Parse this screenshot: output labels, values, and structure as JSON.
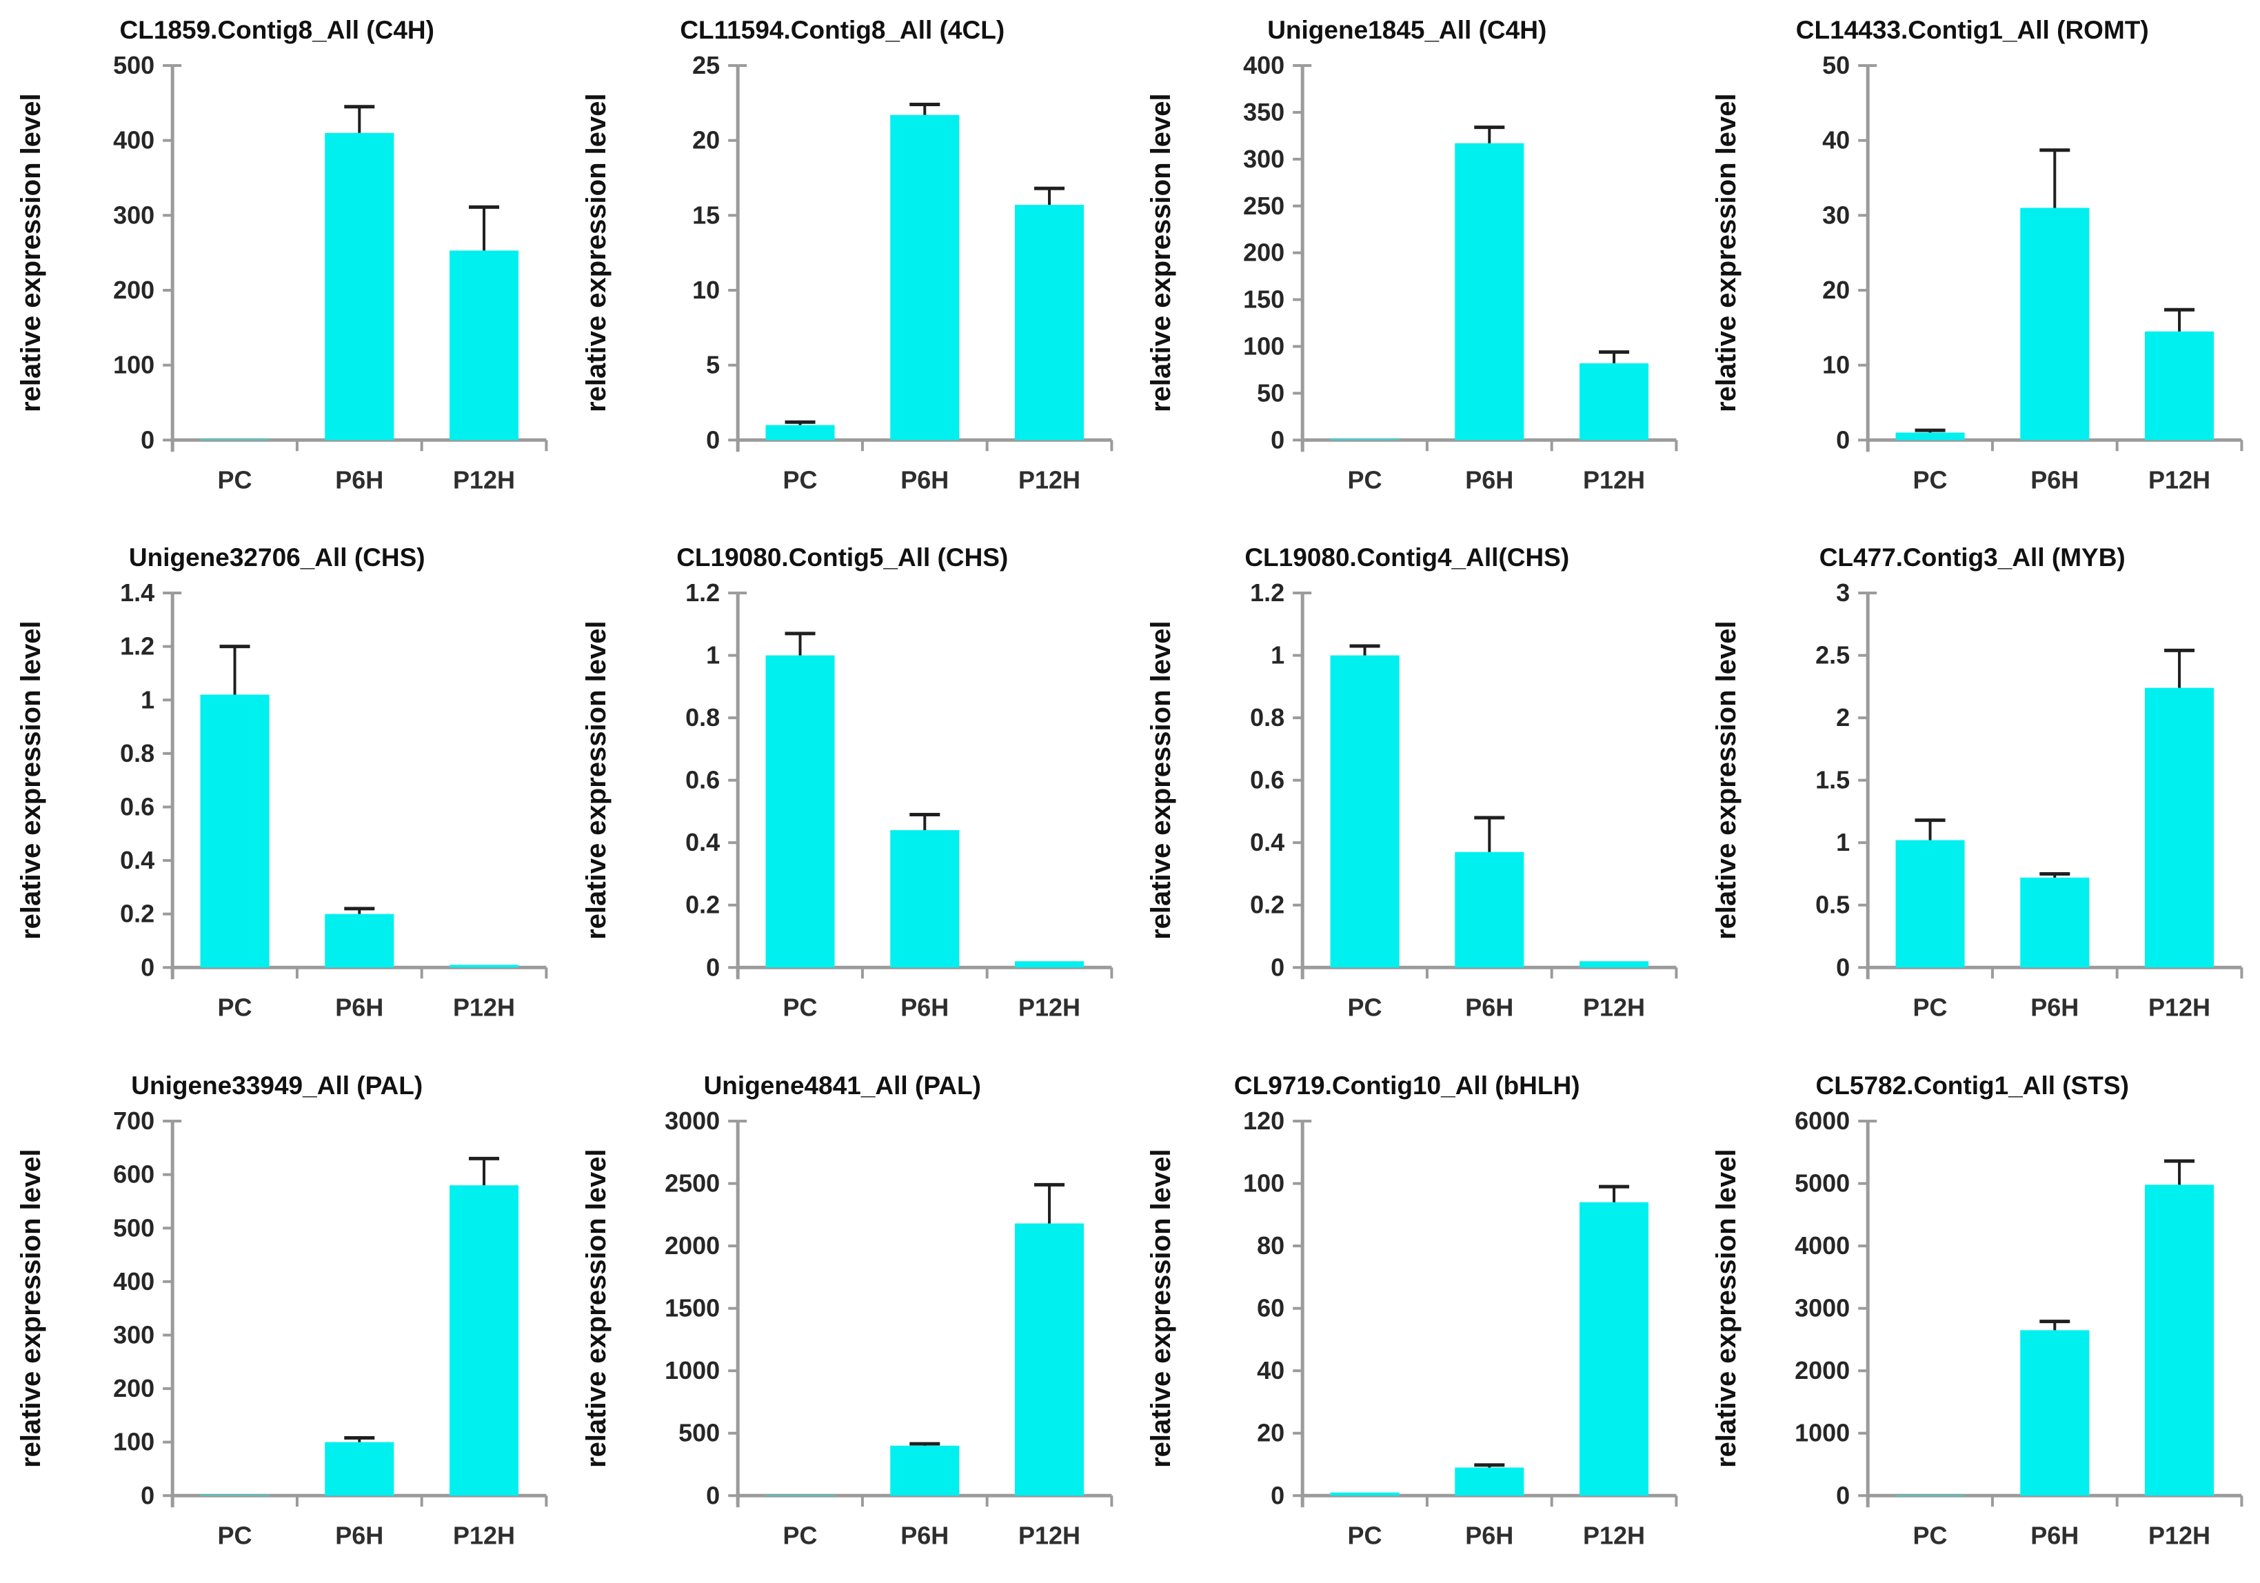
{
  "shared": {
    "ylabel": "relative expression level",
    "categories": [
      "PC",
      "P6H",
      "P12H"
    ],
    "colors": {
      "bar": "#00F0F0",
      "axis": "#9B9B9B",
      "error_bar": "#1F1F1F",
      "text": "#1A1A1A",
      "background": "#FFFFFF"
    }
  },
  "chart_data": [
    {
      "type": "bar",
      "title": "CL1859.Contig8_All (C4H)",
      "ylabel": "relative expression level",
      "categories": [
        "PC",
        "P6H",
        "P12H"
      ],
      "values": [
        1,
        410,
        253
      ],
      "errors": [
        0,
        35,
        58
      ],
      "ylim": [
        0,
        500
      ],
      "ytick_step": 100,
      "grid": false,
      "legend": "none"
    },
    {
      "type": "bar",
      "title": "CL11594.Contig8_All (4CL)",
      "ylabel": "relative expression level",
      "categories": [
        "PC",
        "P6H",
        "P12H"
      ],
      "values": [
        1.0,
        21.7,
        15.7
      ],
      "errors": [
        0.2,
        0.7,
        1.1
      ],
      "ylim": [
        0,
        25
      ],
      "ytick_step": 5,
      "grid": false,
      "legend": "none"
    },
    {
      "type": "bar",
      "title": "Unigene1845_All (C4H)",
      "ylabel": "relative expression level",
      "categories": [
        "PC",
        "P6H",
        "P12H"
      ],
      "values": [
        1,
        317,
        82
      ],
      "errors": [
        0,
        17,
        12
      ],
      "ylim": [
        0,
        400
      ],
      "ytick_step": 50,
      "grid": false,
      "legend": "none"
    },
    {
      "type": "bar",
      "title": "CL14433.Contig1_All (ROMT)",
      "ylabel": "relative expression level",
      "categories": [
        "PC",
        "P6H",
        "P12H"
      ],
      "values": [
        1,
        31,
        14.5
      ],
      "errors": [
        0.3,
        7.7,
        2.9
      ],
      "ylim": [
        0,
        50
      ],
      "ytick_step": 10,
      "grid": false,
      "legend": "none"
    },
    {
      "type": "bar",
      "title": "Unigene32706_All (CHS)",
      "ylabel": "relative expression level",
      "categories": [
        "PC",
        "P6H",
        "P12H"
      ],
      "values": [
        1.02,
        0.2,
        0.01
      ],
      "errors": [
        0.18,
        0.02,
        0
      ],
      "ylim": [
        0,
        1.4
      ],
      "ytick_step": 0.2,
      "grid": false,
      "legend": "none"
    },
    {
      "type": "bar",
      "title": "CL19080.Contig5_All (CHS)",
      "ylabel": "relative expression level",
      "categories": [
        "PC",
        "P6H",
        "P12H"
      ],
      "values": [
        1.0,
        0.44,
        0.02
      ],
      "errors": [
        0.07,
        0.05,
        0
      ],
      "ylim": [
        0,
        1.2
      ],
      "ytick_step": 0.2,
      "grid": false,
      "legend": "none"
    },
    {
      "type": "bar",
      "title": "CL19080.Contig4_All(CHS)",
      "ylabel": "relative expression level",
      "categories": [
        "PC",
        "P6H",
        "P12H"
      ],
      "values": [
        1.0,
        0.37,
        0.02
      ],
      "errors": [
        0.03,
        0.11,
        0
      ],
      "ylim": [
        0,
        1.2
      ],
      "ytick_step": 0.2,
      "grid": false,
      "legend": "none"
    },
    {
      "type": "bar",
      "title": "CL477.Contig3_All (MYB)",
      "ylabel": "relative expression level",
      "categories": [
        "PC",
        "P6H",
        "P12H"
      ],
      "values": [
        1.02,
        0.72,
        2.24
      ],
      "errors": [
        0.16,
        0.03,
        0.3
      ],
      "ylim": [
        0,
        3
      ],
      "ytick_step": 0.5,
      "grid": false,
      "legend": "none"
    },
    {
      "type": "bar",
      "title": "Unigene33949_All (PAL)",
      "ylabel": "relative expression level",
      "categories": [
        "PC",
        "P6H",
        "P12H"
      ],
      "values": [
        1,
        100,
        580
      ],
      "errors": [
        0,
        8,
        50
      ],
      "ylim": [
        0,
        700
      ],
      "ytick_step": 100,
      "grid": false,
      "legend": "none"
    },
    {
      "type": "bar",
      "title": "Unigene4841_All (PAL)",
      "ylabel": "relative expression level",
      "categories": [
        "PC",
        "P6H",
        "P12H"
      ],
      "values": [
        2,
        400,
        2180
      ],
      "errors": [
        0,
        15,
        310
      ],
      "ylim": [
        0,
        3000
      ],
      "ytick_step": 500,
      "grid": false,
      "legend": "none"
    },
    {
      "type": "bar",
      "title": "CL9719.Contig10_All (bHLH)",
      "ylabel": "relative expression level",
      "categories": [
        "PC",
        "P6H",
        "P12H"
      ],
      "values": [
        1,
        9,
        94
      ],
      "errors": [
        0,
        0.8,
        5
      ],
      "ylim": [
        0,
        120
      ],
      "ytick_step": 20,
      "grid": false,
      "legend": "none"
    },
    {
      "type": "bar",
      "title": "CL5782.Contig1_All (STS)",
      "ylabel": "relative expression level",
      "categories": [
        "PC",
        "P6H",
        "P12H"
      ],
      "values": [
        2,
        2650,
        4980
      ],
      "errors": [
        0,
        140,
        380
      ],
      "ylim": [
        0,
        6000
      ],
      "ytick_step": 1000,
      "grid": false,
      "legend": "none"
    }
  ]
}
